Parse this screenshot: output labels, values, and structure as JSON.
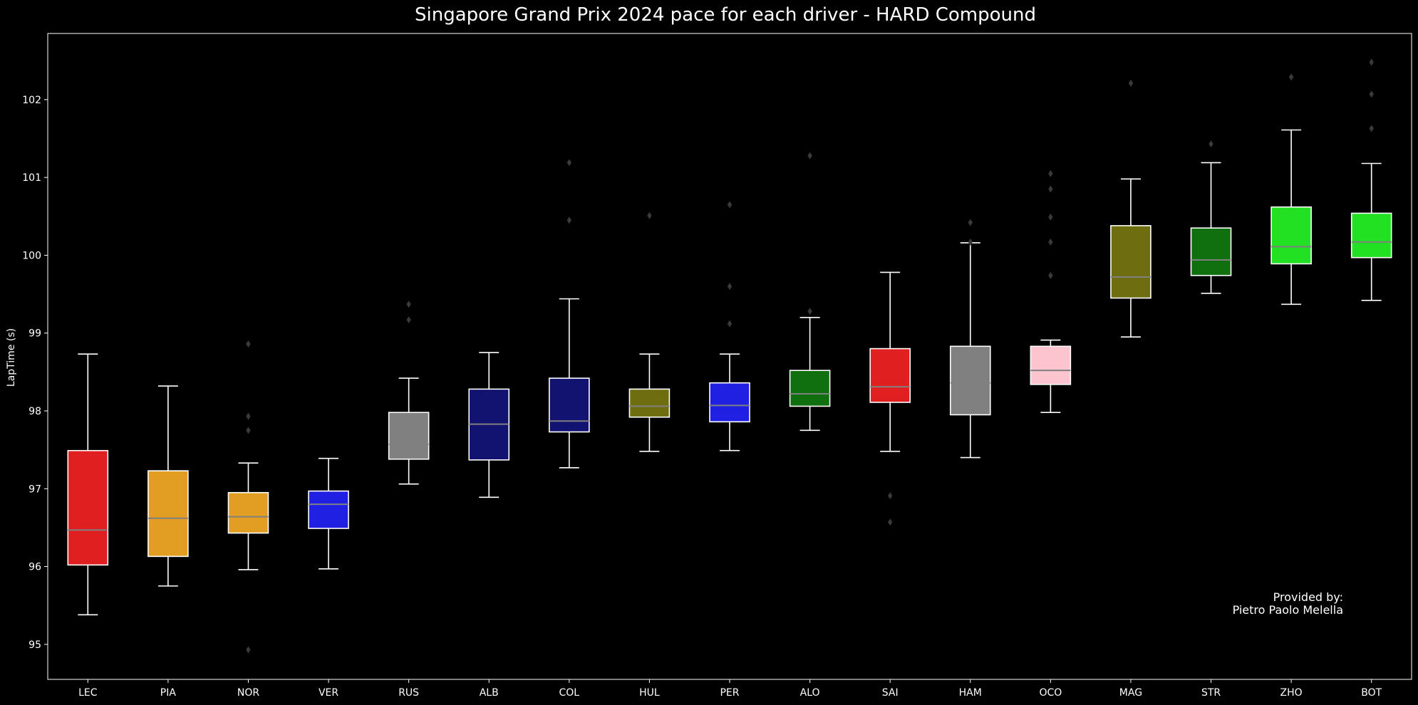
{
  "chart_data": {
    "type": "box",
    "title": "Singapore Grand Prix 2024 pace for each driver - HARD Compound",
    "xlabel": "",
    "ylabel": "LapTime (s)",
    "ylim": [
      94.55,
      102.85
    ],
    "yticks": [
      "95",
      "96",
      "97",
      "98",
      "99",
      "100",
      "101",
      "102"
    ],
    "grid": false,
    "categories": [
      "LEC",
      "PIA",
      "NOR",
      "VER",
      "RUS",
      "ALB",
      "COL",
      "HUL",
      "PER",
      "ALO",
      "SAI",
      "HAM",
      "OCO",
      "MAG",
      "STR",
      "ZHO",
      "BOT"
    ],
    "boxes": [
      {
        "label": "LEC",
        "color": "#e02020",
        "whisker_low": 95.38,
        "q1": 96.02,
        "median": 96.47,
        "q3": 97.49,
        "whisker_high": 98.73,
        "outliers": []
      },
      {
        "label": "PIA",
        "color": "#e19e22",
        "whisker_low": 95.75,
        "q1": 96.13,
        "median": 96.62,
        "q3": 97.23,
        "whisker_high": 98.32,
        "outliers": []
      },
      {
        "label": "NOR",
        "color": "#e19e22",
        "whisker_low": 95.96,
        "q1": 96.43,
        "median": 96.64,
        "q3": 96.95,
        "whisker_high": 97.33,
        "outliers": [
          94.93,
          97.75,
          97.93,
          98.86
        ]
      },
      {
        "label": "VER",
        "color": "#2020e2",
        "whisker_low": 95.97,
        "q1": 96.49,
        "median": 96.8,
        "q3": 96.97,
        "whisker_high": 97.39,
        "outliers": []
      },
      {
        "label": "RUS",
        "color": "#808080",
        "whisker_low": 97.06,
        "q1": 97.38,
        "median": 97.57,
        "q3": 97.98,
        "whisker_high": 98.42,
        "outliers": [
          99.17,
          99.37
        ]
      },
      {
        "label": "ALB",
        "color": "#121270",
        "whisker_low": 96.89,
        "q1": 97.37,
        "median": 97.83,
        "q3": 98.28,
        "whisker_high": 98.75,
        "outliers": []
      },
      {
        "label": "COL",
        "color": "#121270",
        "whisker_low": 97.27,
        "q1": 97.73,
        "median": 97.87,
        "q3": 98.42,
        "whisker_high": 99.44,
        "outliers": [
          100.45,
          101.19
        ]
      },
      {
        "label": "HUL",
        "color": "#6e6e10",
        "whisker_low": 97.48,
        "q1": 97.92,
        "median": 98.06,
        "q3": 98.28,
        "whisker_high": 98.73,
        "outliers": [
          100.51
        ]
      },
      {
        "label": "PER",
        "color": "#2020e2",
        "whisker_low": 97.49,
        "q1": 97.86,
        "median": 98.07,
        "q3": 98.36,
        "whisker_high": 98.73,
        "outliers": [
          99.12,
          99.6,
          100.65
        ]
      },
      {
        "label": "ALO",
        "color": "#107010",
        "whisker_low": 97.75,
        "q1": 98.06,
        "median": 98.22,
        "q3": 98.52,
        "whisker_high": 99.2,
        "outliers": [
          99.28,
          101.28
        ]
      },
      {
        "label": "SAI",
        "color": "#e02020",
        "whisker_low": 97.48,
        "q1": 98.11,
        "median": 98.31,
        "q3": 98.8,
        "whisker_high": 99.78,
        "outliers": [
          96.57,
          96.91
        ]
      },
      {
        "label": "HAM",
        "color": "#808080",
        "whisker_low": 97.4,
        "q1": 97.95,
        "median": 98.36,
        "q3": 98.83,
        "whisker_high": 100.16,
        "outliers": [
          100.17,
          100.42
        ]
      },
      {
        "label": "OCO",
        "color": "#fbc4ce",
        "whisker_low": 97.98,
        "q1": 98.34,
        "median": 98.52,
        "q3": 98.83,
        "whisker_high": 98.91,
        "outliers": [
          99.74,
          100.17,
          100.49,
          100.85,
          101.05
        ]
      },
      {
        "label": "MAG",
        "color": "#6e6e10",
        "whisker_low": 98.95,
        "q1": 99.45,
        "median": 99.72,
        "q3": 100.38,
        "whisker_high": 100.98,
        "outliers": [
          102.21
        ]
      },
      {
        "label": "STR",
        "color": "#107010",
        "whisker_low": 99.51,
        "q1": 99.74,
        "median": 99.94,
        "q3": 100.35,
        "whisker_high": 101.19,
        "outliers": [
          101.43
        ]
      },
      {
        "label": "ZHO",
        "color": "#22e022",
        "whisker_low": 99.37,
        "q1": 99.89,
        "median": 100.11,
        "q3": 100.62,
        "whisker_high": 101.61,
        "outliers": [
          102.29
        ]
      },
      {
        "label": "BOT",
        "color": "#22e022",
        "whisker_low": 99.42,
        "q1": 99.97,
        "median": 100.17,
        "q3": 100.54,
        "whisker_high": 101.18,
        "outliers": [
          101.63,
          102.07,
          102.48
        ]
      }
    ],
    "colors": {
      "background": "#000000",
      "axes": "#ffffff",
      "median": "#808080",
      "outlier": "#3a3a3a"
    }
  },
  "annotation": {
    "line1": "Provided by:",
    "line2": "Pietro Paolo Melella"
  }
}
